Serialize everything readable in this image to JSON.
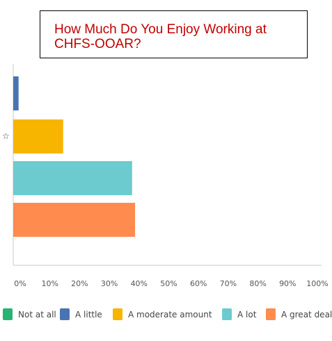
{
  "chart_data": {
    "type": "bar",
    "orientation": "horizontal",
    "title": "How Much Do You Enjoy Working at CHFS-OOAR?",
    "categories": [
      "Not at all",
      "A little",
      "A moderate amount",
      "A lot",
      "A great deal"
    ],
    "values": [
      0,
      1.8,
      16.8,
      40.0,
      41.0
    ],
    "colors": [
      "#26b373",
      "#4a74b1",
      "#f7b500",
      "#6ccbcf",
      "#ff8b4f"
    ],
    "xlim": [
      0,
      100
    ],
    "xticks": [
      "0%",
      "10%",
      "20%",
      "30%",
      "40%",
      "50%",
      "60%",
      "70%",
      "80%",
      "90%",
      "100%"
    ],
    "legend": {
      "position": "bottom",
      "items": [
        "Not at all",
        "A little",
        "A moderate amount",
        "A lot",
        "A great deal"
      ]
    },
    "marker": {
      "icon": "star-outline-icon",
      "glyph": "☆",
      "category": "A moderate amount"
    },
    "grid": false
  }
}
